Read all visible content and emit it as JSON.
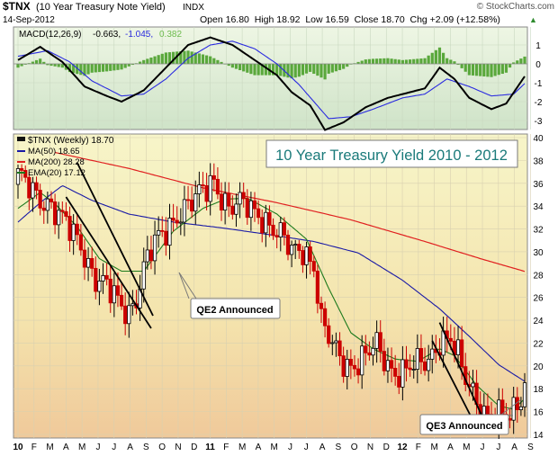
{
  "header": {
    "symbol": "$TNX",
    "name": "(10 Year Treasury Note Yield)",
    "exchange": "INDX",
    "watermark": "© StockCharts.com",
    "date": "14-Sep-2012",
    "quote_text": "Open 16.80  High 18.92  Low 16.59  Close 18.70  Chg +2.09 (+12.58%)",
    "quote_arrow": "▲"
  },
  "colors": {
    "up": "#000000",
    "down": "#cc0000",
    "ma50": "#1a1aa6",
    "ma200": "#e02020",
    "ema20": "#1d7a1d",
    "macd": "#000000",
    "signal": "#2a2ae0",
    "histogram": "#5aa83c",
    "title": "#1a7a7a"
  },
  "macd_panel": {
    "legend_prefix": "MACD(12,26,9)",
    "legend_macd": "-0.663,",
    "legend_signal": "-1.045,",
    "legend_hist": "0.382",
    "ticks": [
      "1",
      "0",
      "-1",
      "-2",
      "-3"
    ]
  },
  "price_panel": {
    "legend_main": "$TNX (Weekly) 18.70",
    "legend_ma50": "MA(50) 18.65",
    "legend_ma200": "MA(200) 28.28",
    "legend_ema20": "EMA(20) 17.12",
    "title_box": "10 Year Treasury Yield 2010 - 2012",
    "annotations": [
      "QE2 Announced",
      "QE3 Announced"
    ]
  },
  "chart_data": {
    "type": "candlestick",
    "title": "10 Year Treasury Yield 2010 - 2012",
    "ylim": [
      14,
      40
    ],
    "y_ticks": [
      14,
      16,
      18,
      20,
      22,
      24,
      26,
      28,
      30,
      32,
      34,
      36,
      38,
      40
    ],
    "x_tick_labels": [
      "10",
      "F",
      "M",
      "A",
      "M",
      "J",
      "J",
      "A",
      "S",
      "O",
      "N",
      "D",
      "11",
      "F",
      "M",
      "A",
      "M",
      "J",
      "J",
      "A",
      "S",
      "O",
      "N",
      "D",
      "12",
      "F",
      "M",
      "A",
      "M",
      "J",
      "J",
      "A",
      "S"
    ],
    "waypoints_week_close": [
      [
        0,
        36.3
      ],
      [
        8,
        34.5
      ],
      [
        12,
        32.5
      ],
      [
        17,
        30.8
      ],
      [
        21,
        27.7
      ],
      [
        24,
        26.6
      ],
      [
        27,
        25.6
      ],
      [
        30,
        25.0
      ],
      [
        32,
        26.2
      ],
      [
        35,
        29.3
      ],
      [
        38,
        31.0
      ],
      [
        43,
        33.5
      ],
      [
        48,
        34.3
      ],
      [
        53,
        36.5
      ],
      [
        57,
        33.8
      ],
      [
        62,
        33.9
      ],
      [
        66,
        33.4
      ],
      [
        70,
        31.5
      ],
      [
        74,
        29.9
      ],
      [
        77,
        30.6
      ],
      [
        80,
        28.9
      ],
      [
        82,
        23.6
      ],
      [
        85,
        21.5
      ],
      [
        89,
        20.3
      ],
      [
        93,
        20.5
      ],
      [
        97,
        21.5
      ],
      [
        101,
        19.9
      ],
      [
        104,
        19.6
      ],
      [
        108,
        19.8
      ],
      [
        111,
        20.5
      ],
      [
        114,
        22.6
      ],
      [
        117,
        22.3
      ],
      [
        121,
        18.6
      ],
      [
        124,
        17.3
      ],
      [
        127,
        15.8
      ],
      [
        130,
        15.3
      ],
      [
        133,
        15.3
      ],
      [
        135,
        16.7
      ],
      [
        137,
        18.7
      ]
    ],
    "ma50_points": [
      [
        0,
        32.6
      ],
      [
        6,
        34.3
      ],
      [
        12,
        35.8
      ],
      [
        20,
        34.5
      ],
      [
        30,
        33.3
      ],
      [
        42,
        32.6
      ],
      [
        55,
        32.1
      ],
      [
        68,
        31.5
      ],
      [
        80,
        30.9
      ],
      [
        92,
        29.9
      ],
      [
        104,
        27.5
      ],
      [
        114,
        25.0
      ],
      [
        122,
        22.6
      ],
      [
        130,
        20.1
      ],
      [
        137,
        18.65
      ]
    ],
    "ma200_points": [
      [
        10,
        38.7
      ],
      [
        30,
        37.3
      ],
      [
        50,
        35.6
      ],
      [
        70,
        34.3
      ],
      [
        90,
        32.8
      ],
      [
        110,
        30.9
      ],
      [
        125,
        29.4
      ],
      [
        137,
        28.28
      ]
    ],
    "ema20_points": [
      [
        0,
        33.8
      ],
      [
        6,
        35.2
      ],
      [
        10,
        34.2
      ],
      [
        16,
        32.2
      ],
      [
        22,
        29.4
      ],
      [
        28,
        28.3
      ],
      [
        34,
        28.3
      ],
      [
        42,
        31.8
      ],
      [
        50,
        33.8
      ],
      [
        56,
        34.6
      ],
      [
        62,
        34.7
      ],
      [
        70,
        33.3
      ],
      [
        78,
        31.1
      ],
      [
        84,
        26.8
      ],
      [
        90,
        22.9
      ],
      [
        96,
        21.5
      ],
      [
        102,
        20.6
      ],
      [
        108,
        20.4
      ],
      [
        114,
        21.5
      ],
      [
        118,
        20.9
      ],
      [
        124,
        18.3
      ],
      [
        130,
        16.5
      ],
      [
        134,
        16.2
      ],
      [
        137,
        17.12
      ]
    ],
    "macd_line": [
      [
        0,
        0.2
      ],
      [
        6,
        0.9
      ],
      [
        12,
        0.1
      ],
      [
        18,
        -1.2
      ],
      [
        24,
        -1.7
      ],
      [
        28,
        -2.0
      ],
      [
        34,
        -1.4
      ],
      [
        40,
        -0.2
      ],
      [
        46,
        1.0
      ],
      [
        52,
        1.4
      ],
      [
        58,
        1.0
      ],
      [
        64,
        0.2
      ],
      [
        70,
        -0.6
      ],
      [
        74,
        -1.5
      ],
      [
        79,
        -2.2
      ],
      [
        83,
        -3.5
      ],
      [
        88,
        -3.1
      ],
      [
        94,
        -2.3
      ],
      [
        100,
        -1.8
      ],
      [
        106,
        -1.5
      ],
      [
        110,
        -1.3
      ],
      [
        114,
        -0.2
      ],
      [
        118,
        -0.8
      ],
      [
        122,
        -1.8
      ],
      [
        128,
        -2.4
      ],
      [
        132,
        -2.1
      ],
      [
        137,
        -0.66
      ]
    ],
    "signal_line": [
      [
        0,
        0.4
      ],
      [
        8,
        0.7
      ],
      [
        14,
        0.1
      ],
      [
        20,
        -0.9
      ],
      [
        28,
        -1.7
      ],
      [
        34,
        -1.6
      ],
      [
        40,
        -0.8
      ],
      [
        46,
        0.3
      ],
      [
        52,
        1.0
      ],
      [
        58,
        1.2
      ],
      [
        64,
        0.8
      ],
      [
        70,
        0.0
      ],
      [
        76,
        -1.1
      ],
      [
        84,
        -2.9
      ],
      [
        90,
        -2.8
      ],
      [
        96,
        -2.4
      ],
      [
        104,
        -1.8
      ],
      [
        110,
        -1.6
      ],
      [
        116,
        -0.8
      ],
      [
        122,
        -1.2
      ],
      [
        128,
        -1.7
      ],
      [
        134,
        -1.6
      ],
      [
        137,
        -1.045
      ]
    ],
    "macd_ticks": [
      1,
      0,
      -1,
      -2,
      -3
    ]
  }
}
